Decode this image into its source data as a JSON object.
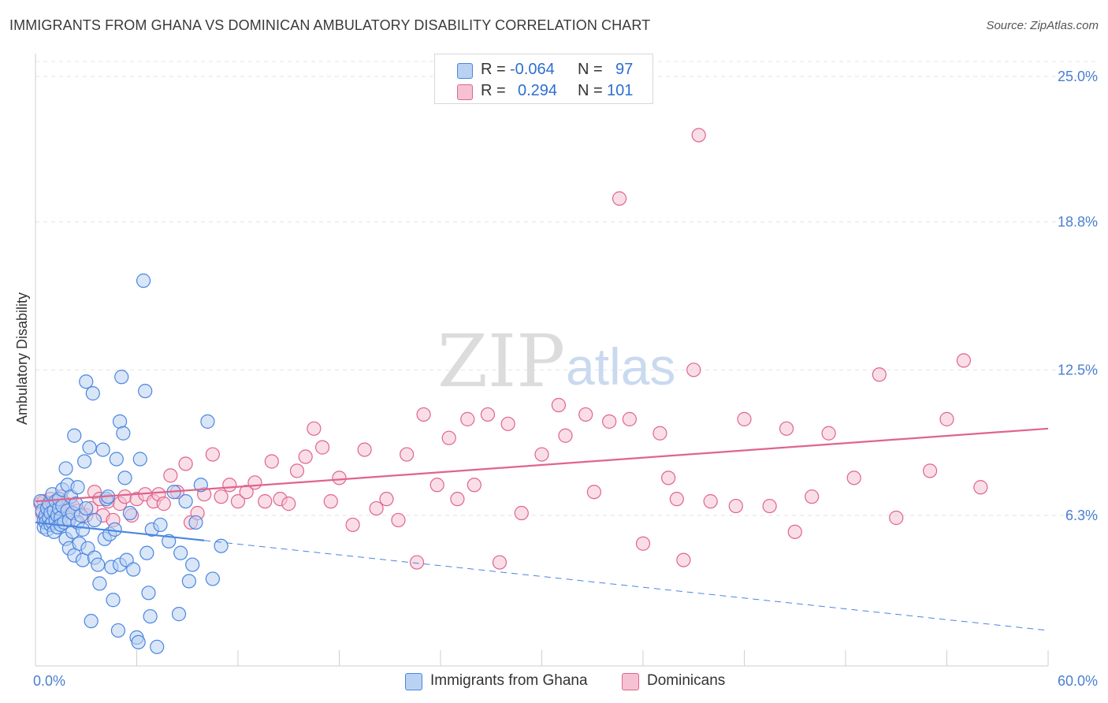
{
  "title": "IMMIGRANTS FROM GHANA VS DOMINICAN AMBULATORY DISABILITY CORRELATION CHART",
  "source": "Source: ZipAtlas.com",
  "watermark": {
    "left": "ZIP",
    "right": "atlas"
  },
  "colors": {
    "blue": "#4a86e0",
    "blue_fill": "#b9d1f3",
    "pink": "#e0648c",
    "pink_fill": "#f6c2d3",
    "axis_text": "#4a7fd0"
  },
  "stats": {
    "blue": {
      "r_label": "R =",
      "r_value": "-0.064",
      "n_label": "N =",
      "n_value": "97"
    },
    "pink": {
      "r_label": "R =",
      "r_value": "0.294",
      "n_label": "N =",
      "n_value": "101"
    }
  },
  "legend": {
    "blue": "Immigrants from Ghana",
    "pink": "Dominicans"
  },
  "chart_data": {
    "type": "scatter",
    "title": "IMMIGRANTS FROM GHANA VS DOMINICAN AMBULATORY DISABILITY CORRELATION CHART",
    "xlabel": "",
    "ylabel": "Ambulatory Disability",
    "xlim": [
      0,
      60
    ],
    "ylim": [
      0,
      26
    ],
    "x_tick_labels": [
      "0.0%",
      "60.0%"
    ],
    "y_ticks": [
      6.3,
      12.5,
      18.8,
      25.0
    ],
    "y_tick_labels": [
      "6.3%",
      "12.5%",
      "18.8%",
      "25.0%"
    ],
    "grid": "horizontal dashed",
    "legend_position": "bottom-center",
    "series": [
      {
        "name": "Immigrants from Ghana",
        "color": "#4a86e0",
        "trend": {
          "x": [
            0,
            60
          ],
          "y": [
            6.0,
            1.4
          ],
          "solid_until_x": 10
        },
        "points": [
          [
            0.3,
            6.9
          ],
          [
            0.4,
            6.5
          ],
          [
            0.5,
            6.1
          ],
          [
            0.5,
            5.8
          ],
          [
            0.6,
            6.3
          ],
          [
            0.6,
            6.0
          ],
          [
            0.7,
            6.6
          ],
          [
            0.7,
            5.7
          ],
          [
            0.8,
            6.2
          ],
          [
            0.8,
            6.8
          ],
          [
            0.9,
            5.9
          ],
          [
            0.9,
            6.4
          ],
          [
            1.0,
            6.0
          ],
          [
            1.0,
            7.2
          ],
          [
            1.1,
            6.5
          ],
          [
            1.1,
            5.6
          ],
          [
            1.2,
            6.1
          ],
          [
            1.2,
            6.9
          ],
          [
            1.3,
            6.3
          ],
          [
            1.3,
            5.8
          ],
          [
            1.4,
            6.6
          ],
          [
            1.4,
            7.0
          ],
          [
            1.5,
            6.2
          ],
          [
            1.5,
            5.9
          ],
          [
            1.6,
            6.7
          ],
          [
            1.6,
            7.4
          ],
          [
            1.7,
            6.0
          ],
          [
            1.8,
            5.3
          ],
          [
            1.8,
            8.3
          ],
          [
            1.9,
            7.6
          ],
          [
            1.9,
            6.5
          ],
          [
            2.0,
            6.1
          ],
          [
            2.0,
            4.9
          ],
          [
            2.1,
            7.1
          ],
          [
            2.2,
            6.4
          ],
          [
            2.2,
            5.6
          ],
          [
            2.3,
            9.7
          ],
          [
            2.3,
            4.6
          ],
          [
            2.4,
            6.8
          ],
          [
            2.5,
            6.0
          ],
          [
            2.5,
            7.5
          ],
          [
            2.6,
            5.1
          ],
          [
            2.7,
            6.3
          ],
          [
            2.8,
            5.7
          ],
          [
            2.8,
            4.4
          ],
          [
            2.9,
            8.6
          ],
          [
            3.0,
            12.0
          ],
          [
            3.0,
            6.6
          ],
          [
            3.1,
            4.9
          ],
          [
            3.2,
            9.2
          ],
          [
            3.3,
            1.8
          ],
          [
            3.4,
            11.5
          ],
          [
            3.5,
            4.5
          ],
          [
            3.5,
            6.1
          ],
          [
            3.7,
            4.2
          ],
          [
            3.8,
            3.4
          ],
          [
            4.0,
            9.1
          ],
          [
            4.1,
            5.3
          ],
          [
            4.2,
            7.0
          ],
          [
            4.3,
            7.1
          ],
          [
            4.4,
            5.5
          ],
          [
            4.5,
            4.1
          ],
          [
            4.6,
            2.7
          ],
          [
            4.7,
            5.7
          ],
          [
            4.8,
            8.7
          ],
          [
            4.9,
            1.4
          ],
          [
            5.0,
            10.3
          ],
          [
            5.0,
            4.2
          ],
          [
            5.1,
            12.2
          ],
          [
            5.2,
            9.8
          ],
          [
            5.3,
            7.9
          ],
          [
            5.4,
            4.4
          ],
          [
            5.6,
            6.4
          ],
          [
            5.8,
            4.0
          ],
          [
            6.0,
            1.1
          ],
          [
            6.1,
            0.9
          ],
          [
            6.2,
            8.7
          ],
          [
            6.4,
            16.3
          ],
          [
            6.5,
            11.6
          ],
          [
            6.6,
            4.7
          ],
          [
            6.7,
            3.0
          ],
          [
            6.8,
            2.0
          ],
          [
            6.9,
            5.7
          ],
          [
            7.2,
            0.7
          ],
          [
            7.4,
            5.9
          ],
          [
            7.9,
            5.2
          ],
          [
            8.2,
            7.3
          ],
          [
            8.5,
            2.1
          ],
          [
            8.6,
            4.7
          ],
          [
            8.9,
            6.9
          ],
          [
            9.1,
            3.5
          ],
          [
            9.3,
            4.2
          ],
          [
            9.5,
            6.0
          ],
          [
            9.8,
            7.6
          ],
          [
            10.2,
            10.3
          ],
          [
            10.5,
            3.6
          ],
          [
            11.0,
            5.0
          ]
        ]
      },
      {
        "name": "Dominicans",
        "color": "#e0648c",
        "trend": {
          "x": [
            0,
            60
          ],
          "y": [
            6.9,
            10.0
          ]
        },
        "points": [
          [
            0.3,
            6.8
          ],
          [
            0.4,
            6.4
          ],
          [
            0.5,
            6.9
          ],
          [
            0.6,
            6.2
          ],
          [
            0.7,
            6.6
          ],
          [
            0.8,
            6.3
          ],
          [
            0.9,
            7.0
          ],
          [
            1.0,
            6.5
          ],
          [
            1.1,
            6.7
          ],
          [
            1.2,
            6.1
          ],
          [
            1.3,
            6.9
          ],
          [
            1.4,
            6.4
          ],
          [
            1.5,
            7.1
          ],
          [
            1.8,
            6.8
          ],
          [
            2.0,
            6.2
          ],
          [
            2.2,
            6.7
          ],
          [
            2.5,
            6.5
          ],
          [
            3.0,
            6.3
          ],
          [
            3.3,
            6.6
          ],
          [
            3.5,
            7.3
          ],
          [
            3.8,
            7.0
          ],
          [
            4.0,
            6.3
          ],
          [
            4.3,
            6.9
          ],
          [
            4.6,
            6.1
          ],
          [
            5.0,
            6.8
          ],
          [
            5.3,
            7.1
          ],
          [
            5.7,
            6.3
          ],
          [
            6.0,
            7.0
          ],
          [
            6.5,
            7.2
          ],
          [
            7.0,
            6.9
          ],
          [
            7.3,
            7.2
          ],
          [
            7.6,
            6.8
          ],
          [
            8.0,
            8.0
          ],
          [
            8.4,
            7.3
          ],
          [
            8.9,
            8.5
          ],
          [
            9.2,
            6.0
          ],
          [
            9.6,
            6.4
          ],
          [
            10.0,
            7.2
          ],
          [
            10.5,
            8.9
          ],
          [
            11.0,
            7.1
          ],
          [
            11.5,
            7.6
          ],
          [
            12.0,
            6.9
          ],
          [
            12.5,
            7.3
          ],
          [
            13.0,
            7.7
          ],
          [
            13.6,
            6.9
          ],
          [
            14.0,
            8.6
          ],
          [
            14.5,
            7.0
          ],
          [
            15.0,
            6.8
          ],
          [
            15.5,
            8.2
          ],
          [
            16.0,
            8.8
          ],
          [
            16.5,
            10.0
          ],
          [
            17.0,
            9.2
          ],
          [
            17.5,
            6.9
          ],
          [
            18.0,
            7.9
          ],
          [
            18.8,
            5.9
          ],
          [
            19.5,
            9.1
          ],
          [
            20.2,
            6.6
          ],
          [
            20.8,
            7.0
          ],
          [
            21.5,
            6.1
          ],
          [
            22.0,
            8.9
          ],
          [
            22.6,
            4.3
          ],
          [
            23.0,
            10.6
          ],
          [
            23.8,
            7.6
          ],
          [
            24.5,
            9.6
          ],
          [
            25.0,
            7.0
          ],
          [
            25.6,
            10.4
          ],
          [
            26.0,
            7.6
          ],
          [
            26.8,
            10.6
          ],
          [
            27.5,
            4.3
          ],
          [
            28.0,
            10.2
          ],
          [
            28.8,
            6.4
          ],
          [
            30.0,
            8.9
          ],
          [
            31.0,
            11.0
          ],
          [
            31.4,
            9.7
          ],
          [
            32.6,
            10.6
          ],
          [
            33.1,
            7.3
          ],
          [
            34.0,
            10.3
          ],
          [
            34.6,
            19.8
          ],
          [
            35.2,
            10.4
          ],
          [
            36.0,
            5.1
          ],
          [
            37.0,
            9.8
          ],
          [
            37.5,
            7.9
          ],
          [
            38.0,
            7.0
          ],
          [
            38.4,
            4.4
          ],
          [
            39.0,
            12.5
          ],
          [
            39.3,
            22.5
          ],
          [
            40.0,
            6.9
          ],
          [
            41.5,
            6.7
          ],
          [
            42.0,
            10.4
          ],
          [
            43.5,
            6.7
          ],
          [
            44.5,
            10.0
          ],
          [
            45.0,
            5.6
          ],
          [
            46.0,
            7.1
          ],
          [
            47.0,
            9.8
          ],
          [
            48.5,
            7.9
          ],
          [
            50.0,
            12.3
          ],
          [
            51.0,
            6.2
          ],
          [
            53.0,
            8.2
          ],
          [
            54.0,
            10.4
          ],
          [
            55.0,
            12.9
          ],
          [
            56.0,
            7.5
          ]
        ]
      }
    ]
  }
}
